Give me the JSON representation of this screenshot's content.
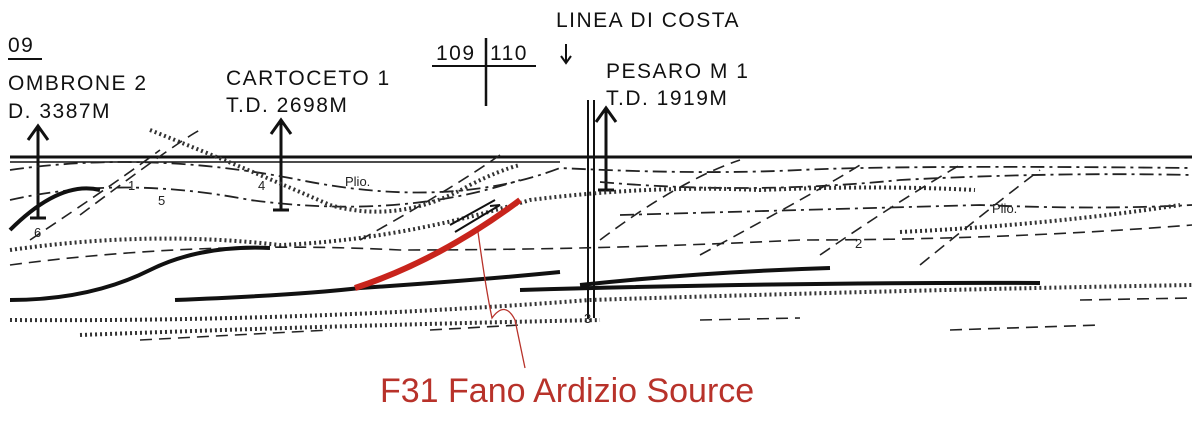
{
  "section_labels": [
    "09",
    "109",
    "110"
  ],
  "coastline": "LINEA DI COSTA",
  "wells": [
    {
      "name": "OMBRONE 2",
      "depth": "D. 3387M"
    },
    {
      "name": "CARTOCETO 1",
      "depth": "T.D. 2698M"
    },
    {
      "name": "PESARO M 1",
      "depth": "T.D. 1919M"
    }
  ],
  "units": [
    "Plio.",
    "Plio.",
    "1",
    "2",
    "3",
    "4",
    "5",
    "6"
  ],
  "annotation": "F31 Fano Ardizio Source"
}
